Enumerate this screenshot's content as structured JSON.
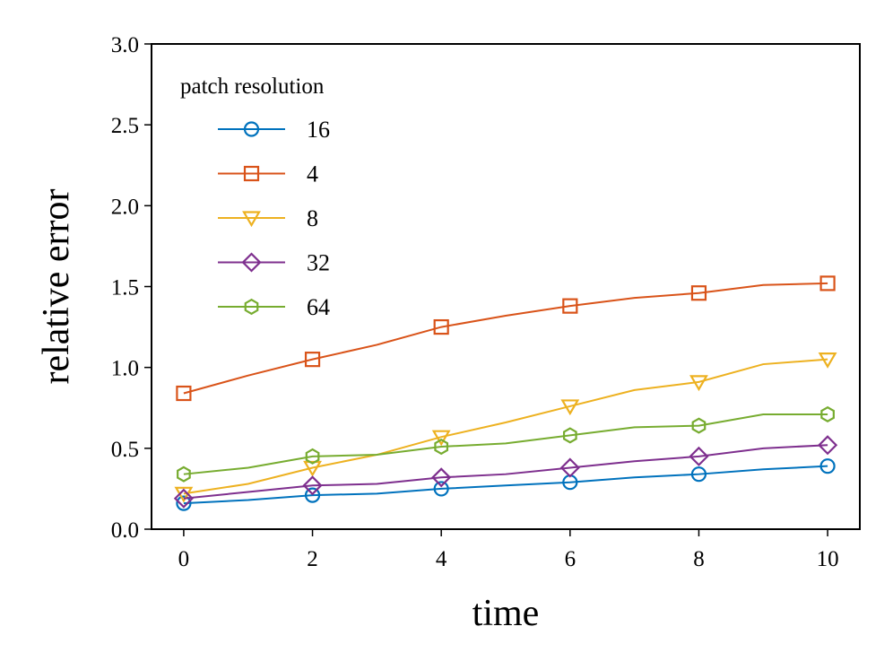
{
  "chart_data": {
    "type": "line",
    "title": "",
    "xlabel": "time",
    "ylabel": "relative error",
    "xlim": [
      -0.5,
      10.5
    ],
    "ylim": [
      0.0,
      3.0
    ],
    "xticks": [
      0,
      2,
      4,
      6,
      8,
      10
    ],
    "xtick_labels": [
      "0",
      "2",
      "4",
      "6",
      "8",
      "10"
    ],
    "yticks": [
      0.0,
      0.5,
      1.0,
      1.5,
      2.0,
      2.5,
      3.0
    ],
    "ytick_labels": [
      "0.0",
      "0.5",
      "1.0",
      "1.5",
      "2.0",
      "2.5",
      "3.0"
    ],
    "grid": false,
    "legend": {
      "title": "patch resolution",
      "placement": "top-left"
    },
    "x": [
      0,
      1,
      2,
      3,
      4,
      5,
      6,
      7,
      8,
      9,
      10
    ],
    "marker_x": [
      0,
      2,
      4,
      6,
      8,
      10
    ],
    "series": [
      {
        "name": "16",
        "color": "#0072bd",
        "marker": "circle",
        "values": [
          0.16,
          0.18,
          0.21,
          0.22,
          0.25,
          0.27,
          0.29,
          0.32,
          0.34,
          0.37,
          0.39
        ]
      },
      {
        "name": "4",
        "color": "#d95319",
        "marker": "square",
        "values": [
          0.84,
          0.95,
          1.05,
          1.14,
          1.25,
          1.32,
          1.38,
          1.43,
          1.46,
          1.51,
          1.52
        ]
      },
      {
        "name": "8",
        "color": "#edb120",
        "marker": "triangle-down",
        "values": [
          0.22,
          0.28,
          0.38,
          0.46,
          0.57,
          0.66,
          0.76,
          0.86,
          0.91,
          1.02,
          1.05
        ]
      },
      {
        "name": "32",
        "color": "#7e2f8e",
        "marker": "diamond",
        "values": [
          0.19,
          0.23,
          0.27,
          0.28,
          0.32,
          0.34,
          0.38,
          0.42,
          0.45,
          0.5,
          0.52
        ]
      },
      {
        "name": "64",
        "color": "#77ac30",
        "marker": "hexagon",
        "values": [
          0.34,
          0.38,
          0.45,
          0.46,
          0.51,
          0.53,
          0.58,
          0.63,
          0.64,
          0.71,
          0.71
        ]
      }
    ]
  }
}
